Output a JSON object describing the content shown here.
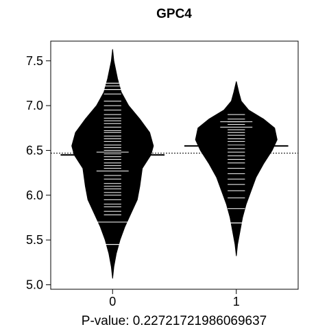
{
  "chart_data": {
    "type": "beanplot",
    "title": "GPC4",
    "xlabel": "P-value: 0.22721721986069637",
    "ylim": [
      4.95,
      7.72
    ],
    "xlim": [
      -0.5,
      1.5
    ],
    "y_ticks": [
      5.0,
      5.5,
      6.0,
      6.5,
      7.0,
      7.5
    ],
    "y_tick_labels": [
      "5.0",
      "5.5",
      "6.0",
      "6.5",
      "7.0",
      "7.5"
    ],
    "x_ticks": [
      0,
      1
    ],
    "x_tick_labels": [
      "0",
      "1"
    ],
    "overall_mean": 6.47,
    "groups": [
      {
        "label": "0",
        "x": 0,
        "mean": 6.45,
        "density": [
          [
            5.07,
            0.0
          ],
          [
            5.2,
            0.01
          ],
          [
            5.35,
            0.03
          ],
          [
            5.5,
            0.06
          ],
          [
            5.65,
            0.1
          ],
          [
            5.8,
            0.15
          ],
          [
            5.95,
            0.2
          ],
          [
            6.1,
            0.22
          ],
          [
            6.3,
            0.24
          ],
          [
            6.45,
            0.31
          ],
          [
            6.55,
            0.33
          ],
          [
            6.7,
            0.3
          ],
          [
            6.85,
            0.22
          ],
          [
            7.0,
            0.13
          ],
          [
            7.15,
            0.07
          ],
          [
            7.3,
            0.04
          ],
          [
            7.5,
            0.01
          ],
          [
            7.63,
            0.0
          ]
        ],
        "observations": [
          5.45,
          5.7,
          5.78,
          5.82,
          5.87,
          5.9,
          5.95,
          6.0,
          6.03,
          6.07,
          6.1,
          6.13,
          6.18,
          6.22,
          6.27,
          6.3,
          6.33,
          6.36,
          6.4,
          6.43,
          6.46,
          6.5,
          6.53,
          6.56,
          6.6,
          6.63,
          6.66,
          6.7,
          6.72,
          6.76,
          6.8,
          6.83,
          6.86,
          6.9,
          6.95,
          7.0,
          7.05,
          7.13,
          7.18,
          7.22,
          7.25
        ],
        "highlighted": [
          5.45,
          5.7,
          6.27,
          6.48,
          7.18,
          7.25
        ]
      },
      {
        "label": "1",
        "x": 1,
        "mean": 6.55,
        "density": [
          [
            5.32,
            0.0
          ],
          [
            5.45,
            0.01
          ],
          [
            5.6,
            0.03
          ],
          [
            5.75,
            0.05
          ],
          [
            5.9,
            0.08
          ],
          [
            6.05,
            0.12
          ],
          [
            6.2,
            0.16
          ],
          [
            6.35,
            0.22
          ],
          [
            6.5,
            0.29
          ],
          [
            6.62,
            0.33
          ],
          [
            6.75,
            0.31
          ],
          [
            6.85,
            0.22
          ],
          [
            6.95,
            0.1
          ],
          [
            7.05,
            0.04
          ],
          [
            7.15,
            0.02
          ],
          [
            7.27,
            0.0
          ]
        ],
        "observations": [
          5.69,
          5.85,
          5.97,
          6.05,
          6.12,
          6.18,
          6.24,
          6.3,
          6.36,
          6.4,
          6.44,
          6.48,
          6.52,
          6.56,
          6.6,
          6.63,
          6.67,
          6.7,
          6.73,
          6.76,
          6.79,
          6.82,
          6.85,
          6.9
        ],
        "highlighted": [
          5.69,
          6.76,
          6.82
        ]
      }
    ]
  }
}
